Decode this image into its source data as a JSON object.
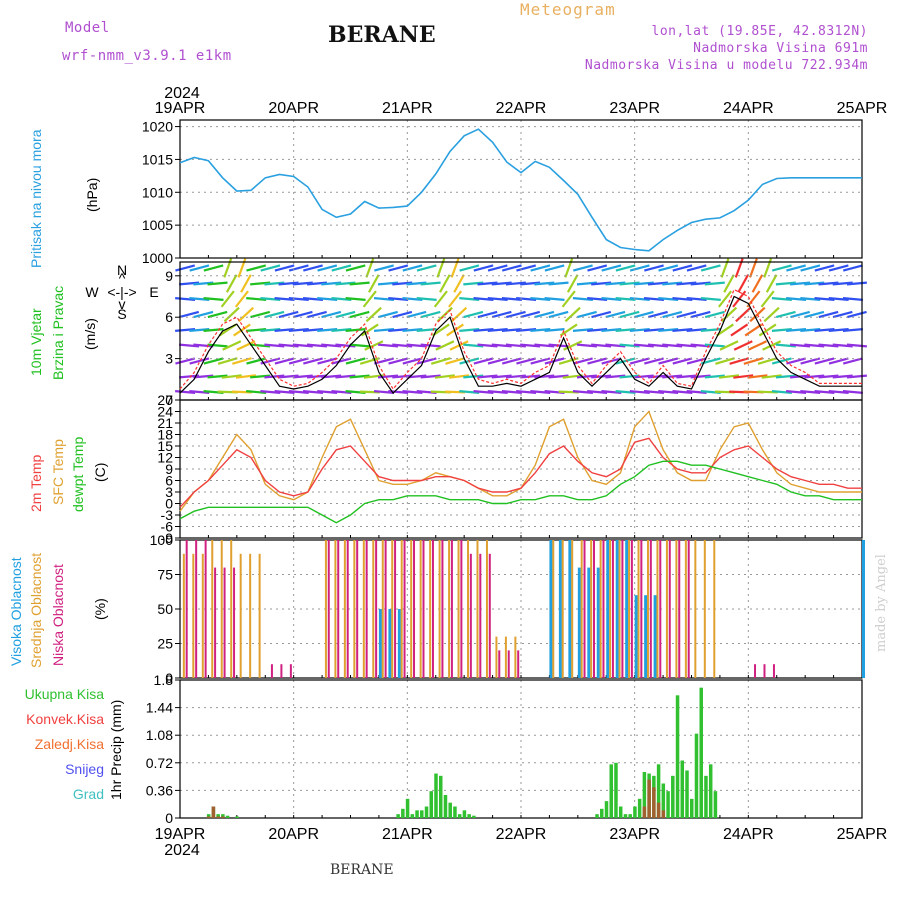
{
  "header": {
    "model_label": "Model",
    "model_name": "wrf-nmm_v3.9.1 e1km",
    "title": "BERANE",
    "subtitle": "Meteogram",
    "coords": "lon,lat (19.85E, 42.8312N)",
    "elev": "Nadmorska Visina 691m",
    "elev_model": "Nadmorska Visina u modelu 722.934m"
  },
  "time_axis": {
    "year": "2024",
    "days": [
      "19APR",
      "20APR",
      "21APR",
      "22APR",
      "23APR",
      "24APR",
      "25APR"
    ]
  },
  "footer": {
    "station": "BERANE",
    "credit": "made by Angel"
  },
  "colors": {
    "pressure": "#2aa0e0",
    "wind_speed": "#000000",
    "gust": "#ff3030",
    "t2m": "#f04040",
    "sfc": "#e0a030",
    "dewpt": "#20c020",
    "high_cloud": "#20a0e0",
    "mid_cloud": "#e0a030",
    "low_cloud": "#d02080",
    "total_precip": "#30c030",
    "conv_precip": "#f04040",
    "frozen": "#f07030",
    "snow": "#5050f0",
    "hail": "#40c0c0"
  },
  "panels": {
    "pressure": {
      "label": "Pritisak na nivou mora",
      "unit": "(hPa)",
      "yticks": [
        "1020",
        "1015",
        "1010",
        "1005",
        "1000"
      ]
    },
    "wind": {
      "label1": "10m Vjetar",
      "label2": "Brzina i Pravac",
      "unit": "(m/s)",
      "yticks": [
        "9",
        "6",
        "3",
        "0"
      ],
      "compass": [
        "N",
        "^",
        "W",
        "<-|->",
        "E",
        "v",
        "S"
      ]
    },
    "temp": {
      "label1": "2m Temp",
      "label2": "SFC Temp",
      "label3": "dewpt Temp",
      "unit": "(C)",
      "yticks": [
        "27",
        "24",
        "21",
        "18",
        "15",
        "12",
        "9",
        "6",
        "3",
        "0",
        "-3",
        "-6",
        "-9"
      ]
    },
    "cloud": {
      "label1": "Visoka Oblacnost",
      "label2": "Srednja Oblacnost",
      "label3": "Niska Oblacnost",
      "unit": "(%)",
      "yticks": [
        "100",
        "75",
        "50",
        "25",
        "0"
      ]
    },
    "precip": {
      "legend": [
        "Ukupna Kisa",
        "Konvek.Kisa",
        "Zaledj.Kisa",
        "Snijeg",
        "Grad"
      ],
      "ylabel": "1hr Precip (mm)",
      "yticks": [
        "1.8",
        "1.44",
        "1.08",
        "0.72",
        "0.36",
        "0"
      ]
    }
  },
  "chart_data": [
    {
      "type": "line",
      "title": "Pritisak na nivou mora",
      "ylabel": "(hPa)",
      "ylim": [
        1000,
        1021
      ],
      "x_hours": [
        0,
        3,
        6,
        9,
        12,
        15,
        18,
        21,
        24,
        27,
        30,
        33,
        36,
        39,
        42,
        45,
        48,
        51,
        54,
        57,
        60,
        63,
        66,
        69,
        72,
        75,
        78,
        81,
        84,
        87,
        90,
        93,
        96,
        99,
        102,
        105,
        108,
        111,
        114,
        117,
        120,
        123,
        126,
        129,
        132,
        135,
        138,
        141,
        144
      ],
      "series": [
        {
          "name": "Pritisak na nivou mora",
          "values": [
            1014.5,
            1015.3,
            1014.8,
            1012.2,
            1010.2,
            1010.3,
            1012.2,
            1012.7,
            1012.4,
            1010.8,
            1007.4,
            1006.2,
            1006.7,
            1008.6,
            1007.6,
            1007.7,
            1007.9,
            1010.0,
            1012.8,
            1016.2,
            1018.6,
            1019.6,
            1017.6,
            1014.6,
            1013.0,
            1014.7,
            1013.8,
            1011.8,
            1009.7,
            1006.2,
            1002.8,
            1001.6,
            1001.3,
            1001.1,
            1002.8,
            1004.2,
            1005.4,
            1005.9,
            1006.1,
            1007.2,
            1008.8,
            1011.2,
            1012.1,
            1012.2,
            1012.2,
            1012.2,
            1012.2,
            1012.2,
            1012.2
          ]
        }
      ]
    },
    {
      "type": "line",
      "title": "10m Vjetar Brzina i Pravac",
      "ylabel": "(m/s)",
      "ylim": [
        0,
        10
      ],
      "x_hours": [
        0,
        3,
        6,
        9,
        12,
        15,
        18,
        21,
        24,
        27,
        30,
        33,
        36,
        39,
        42,
        45,
        48,
        51,
        54,
        57,
        60,
        63,
        66,
        69,
        72,
        75,
        78,
        81,
        84,
        87,
        90,
        93,
        96,
        99,
        102,
        105,
        108,
        111,
        114,
        117,
        120,
        123,
        126,
        129,
        132,
        135,
        138,
        141,
        144
      ],
      "series": [
        {
          "name": "speed",
          "values": [
            0.5,
            1.5,
            3.5,
            5.0,
            5.5,
            4.0,
            2.5,
            1.0,
            0.8,
            1.0,
            1.5,
            2.5,
            4.0,
            5.0,
            2.0,
            0.5,
            1.5,
            2.5,
            5.0,
            6.0,
            3.0,
            1.0,
            1.0,
            1.2,
            1.0,
            1.5,
            2.0,
            4.5,
            2.0,
            1.0,
            2.0,
            3.0,
            1.5,
            1.0,
            2.0,
            1.0,
            0.8,
            3.0,
            5.0,
            7.5,
            7.0,
            5.0,
            3.0,
            2.0,
            1.5,
            1.0,
            1.0,
            1.0,
            1.0
          ]
        },
        {
          "name": "gust",
          "values": [
            0.8,
            2.0,
            4.0,
            5.5,
            6.0,
            4.5,
            3.0,
            1.5,
            1.0,
            1.2,
            2.0,
            3.0,
            4.5,
            5.5,
            2.5,
            0.8,
            2.0,
            3.0,
            5.5,
            6.5,
            3.5,
            1.5,
            1.2,
            1.5,
            1.2,
            2.0,
            2.5,
            5.0,
            2.5,
            1.2,
            2.5,
            3.5,
            2.0,
            1.2,
            2.5,
            1.2,
            1.0,
            3.5,
            5.5,
            8.0,
            7.5,
            5.5,
            3.5,
            2.5,
            2.0,
            1.2,
            1.2,
            1.2,
            1.2
          ]
        }
      ]
    },
    {
      "type": "line",
      "title": "2m Temp / SFC Temp / dewpt Temp",
      "ylabel": "(C)",
      "ylim": [
        -9,
        27
      ],
      "x_hours": [
        0,
        3,
        6,
        9,
        12,
        15,
        18,
        21,
        24,
        27,
        30,
        33,
        36,
        39,
        42,
        45,
        48,
        51,
        54,
        57,
        60,
        63,
        66,
        69,
        72,
        75,
        78,
        81,
        84,
        87,
        90,
        93,
        96,
        99,
        102,
        105,
        108,
        111,
        114,
        117,
        120,
        123,
        126,
        129,
        132,
        135,
        138,
        141,
        144
      ],
      "series": [
        {
          "name": "2m Temp",
          "values": [
            -1,
            3,
            6,
            10,
            14,
            12,
            6,
            3,
            2,
            3,
            9,
            14,
            15,
            11,
            7,
            6,
            6,
            6,
            7,
            7,
            6,
            4,
            3,
            3,
            4,
            8,
            13,
            15,
            11,
            8,
            7,
            9,
            16,
            17,
            12,
            9,
            8,
            8,
            12,
            14,
            15,
            12,
            9,
            7,
            6,
            5,
            5,
            4,
            4
          ]
        },
        {
          "name": "SFC Temp",
          "values": [
            -2,
            3,
            6,
            12,
            18,
            14,
            5,
            2,
            1,
            3,
            12,
            20,
            22,
            14,
            6,
            5,
            5,
            6,
            8,
            7,
            6,
            4,
            2,
            2,
            4,
            10,
            20,
            22,
            12,
            6,
            5,
            8,
            20,
            24,
            14,
            8,
            6,
            6,
            14,
            20,
            21,
            14,
            8,
            5,
            4,
            3,
            3,
            3,
            3
          ]
        },
        {
          "name": "dewpt Temp",
          "values": [
            -4,
            -2,
            -1,
            -1,
            -1,
            -1,
            -1,
            -1,
            -1,
            -1,
            -3,
            -5,
            -3,
            0,
            1,
            1,
            2,
            2,
            2,
            1,
            1,
            1,
            0,
            0,
            1,
            1,
            2,
            2,
            1,
            1,
            2,
            5,
            7,
            10,
            11,
            11,
            10,
            10,
            9,
            8,
            7,
            6,
            5,
            3,
            2,
            2,
            1,
            1,
            1
          ]
        }
      ]
    },
    {
      "type": "bar",
      "title": "Visoka / Srednja / Niska Oblacnost",
      "ylabel": "(%)",
      "ylim": [
        0,
        100
      ],
      "x_hours": [
        0,
        6,
        12,
        18,
        24,
        30,
        36,
        42,
        48,
        54,
        60,
        66,
        72,
        78,
        84,
        90,
        96,
        102,
        108,
        114,
        120,
        126,
        132,
        138,
        144
      ],
      "series": [
        {
          "name": "Visoka Oblacnost",
          "values": [
            0,
            0,
            0,
            0,
            0,
            0,
            0,
            50,
            0,
            0,
            0,
            0,
            0,
            100,
            80,
            100,
            60,
            0,
            0,
            0,
            0,
            0,
            0,
            0,
            100
          ]
        },
        {
          "name": "Srednja Oblacnost",
          "values": [
            90,
            100,
            90,
            0,
            0,
            100,
            100,
            100,
            100,
            100,
            100,
            30,
            0,
            100,
            100,
            100,
            100,
            100,
            100,
            0,
            0,
            0,
            0,
            0,
            100
          ]
        },
        {
          "name": "Niska Oblacnost",
          "values": [
            100,
            80,
            0,
            10,
            0,
            100,
            100,
            100,
            100,
            100,
            90,
            20,
            0,
            0,
            100,
            100,
            100,
            100,
            0,
            0,
            10,
            0,
            0,
            0,
            0
          ]
        }
      ]
    },
    {
      "type": "bar",
      "title": "1hr Precip",
      "ylabel": "(mm)",
      "ylim": [
        0,
        1.8
      ],
      "x_hours": [
        6,
        7,
        8,
        9,
        10,
        12,
        46,
        47,
        48,
        49,
        50,
        51,
        52,
        53,
        54,
        55,
        56,
        57,
        58,
        59,
        60,
        61,
        62,
        88,
        89,
        90,
        91,
        92,
        93,
        94,
        95,
        96,
        97,
        98,
        99,
        100,
        101,
        102,
        103,
        104,
        105,
        106,
        107,
        108,
        109,
        110,
        111,
        112,
        113
      ],
      "series": [
        {
          "name": "Ukupna Kisa",
          "values": [
            0.05,
            0.15,
            0.05,
            0.05,
            0.03,
            0.02,
            0.05,
            0.12,
            0.25,
            0.05,
            0.1,
            0.1,
            0.15,
            0.35,
            0.58,
            0.55,
            0.3,
            0.2,
            0.15,
            0.05,
            0.1,
            0.05,
            0.03,
            0.05,
            0.12,
            0.22,
            0.7,
            0.72,
            0.15,
            0.05,
            0.05,
            0.15,
            0.25,
            0.6,
            0.58,
            0.55,
            0.7,
            0.45,
            0.35,
            0.55,
            1.6,
            0.75,
            0.62,
            0.25,
            1.1,
            1.7,
            0.55,
            0.7,
            0.35
          ]
        },
        {
          "name": "Konvek.Kisa",
          "values": [
            0.02,
            0.15,
            0.02,
            0.02,
            0.0,
            0.0,
            0,
            0,
            0,
            0,
            0,
            0,
            0,
            0,
            0,
            0,
            0,
            0,
            0,
            0,
            0,
            0,
            0,
            0,
            0,
            0,
            0,
            0,
            0,
            0,
            0,
            0,
            0,
            0.15,
            0.5,
            0.4,
            0.2,
            0.1,
            0,
            0,
            0,
            0,
            0,
            0,
            0,
            0,
            0,
            0,
            0
          ]
        }
      ]
    }
  ]
}
